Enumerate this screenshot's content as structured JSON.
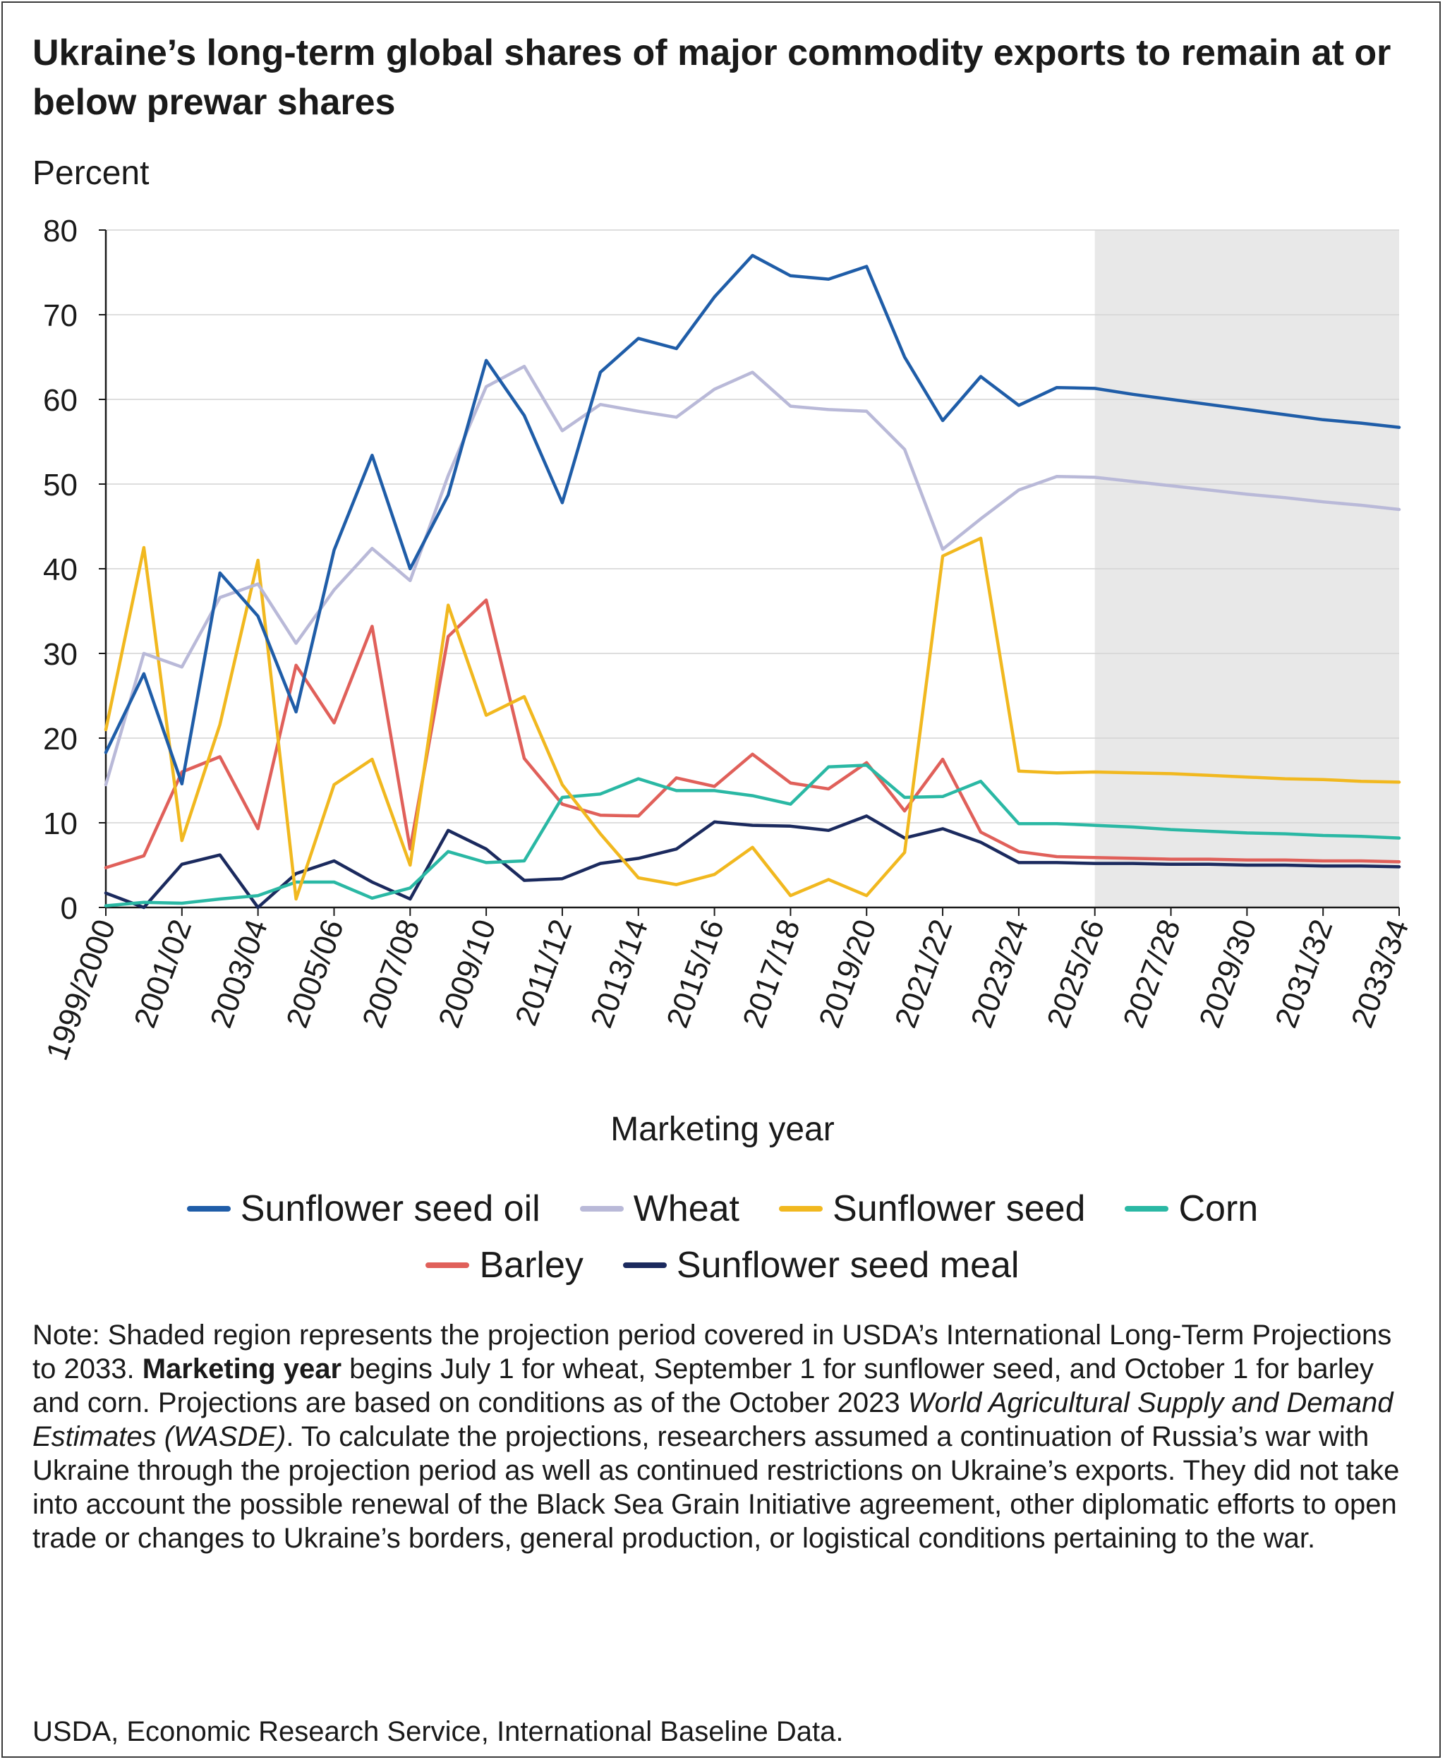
{
  "title": "Ukraine’s long-term global shares of major commodity exports to remain at or below prewar shares",
  "note": {
    "p1": "Note: Shaded region represents the projection period covered in USDA’s International Long-Term Projections to 2033. ",
    "bold": "Marketing year",
    "p2": " begins July 1 for wheat, September 1 for sunflower seed, and October 1 for barley and corn. Projections are based on conditions as of the October 2023 ",
    "italic": "World Agricultural Supply and Demand Estimates (WASDE)",
    "p3": ". To calculate the projections, researchers assumed a continuation of Russia’s war with Ukraine through the projection period as well as continued restrictions on Ukraine’s exports. They did not take into account the possible renewal of the Black Sea Grain Initiative agreement, other diplomatic efforts to open trade or changes to Ukraine’s borders, general production, or logistical conditions pertaining to the war."
  },
  "source": "USDA, Economic Research Service, International Baseline Data.",
  "chart_data": {
    "type": "line",
    "ylabel": "Percent",
    "xlabel": "Marketing year",
    "ylim": [
      0,
      80
    ],
    "yticks": [
      0,
      10,
      20,
      30,
      40,
      50,
      60,
      70,
      80
    ],
    "grid": "horizontal",
    "legend_position": "bottom",
    "projection_shaded_from": "2025/26",
    "projection_shaded_to": "2033/34",
    "x": [
      "1999/2000",
      "2000/01",
      "2001/02",
      "2002/03",
      "2003/04",
      "2004/05",
      "2005/06",
      "2006/07",
      "2007/08",
      "2008/09",
      "2009/10",
      "2010/11",
      "2011/12",
      "2012/13",
      "2013/14",
      "2014/15",
      "2015/16",
      "2016/17",
      "2017/18",
      "2018/19",
      "2019/20",
      "2020/21",
      "2021/22",
      "2022/23",
      "2023/24",
      "2024/25",
      "2025/26",
      "2026/27",
      "2027/28",
      "2028/29",
      "2029/30",
      "2030/31",
      "2031/32",
      "2032/33",
      "2033/34"
    ],
    "xtick_labels": [
      "1999/2000",
      "2001/02",
      "2003/04",
      "2005/06",
      "2007/08",
      "2009/10",
      "2011/12",
      "2013/14",
      "2015/16",
      "2017/18",
      "2019/20",
      "2021/22",
      "2023/24",
      "2025/26",
      "2027/28",
      "2029/30",
      "2031/32",
      "2033/34"
    ],
    "series": [
      {
        "name": "Sunflower seed oil",
        "color": "#1f5da8",
        "values": [
          18.3,
          27.6,
          14.6,
          39.5,
          34.4,
          23.1,
          42.2,
          53.4,
          40.0,
          48.7,
          64.6,
          58.1,
          47.8,
          63.2,
          67.2,
          66.0,
          72.1,
          77.0,
          74.6,
          74.2,
          75.7,
          65.0,
          57.5,
          62.7,
          59.3,
          61.4,
          61.3,
          60.6,
          60.0,
          59.4,
          58.8,
          58.2,
          57.6,
          57.2,
          56.7
        ]
      },
      {
        "name": "Wheat",
        "color": "#b9b9d8",
        "values": [
          14.5,
          30.0,
          28.4,
          36.6,
          38.2,
          31.2,
          37.5,
          42.4,
          38.6,
          51.0,
          61.5,
          63.9,
          56.3,
          59.4,
          58.6,
          57.9,
          61.2,
          63.2,
          59.2,
          58.8,
          58.6,
          54.1,
          42.3,
          45.9,
          49.3,
          50.9,
          50.8,
          50.3,
          49.8,
          49.3,
          48.8,
          48.4,
          47.9,
          47.5,
          47.0
        ]
      },
      {
        "name": "Sunflower seed",
        "color": "#f1b81f",
        "values": [
          21.0,
          42.5,
          7.9,
          21.6,
          41.0,
          1.0,
          14.5,
          17.5,
          5.0,
          35.7,
          22.7,
          24.9,
          14.5,
          8.7,
          3.5,
          2.7,
          3.9,
          7.1,
          1.4,
          3.3,
          1.4,
          6.5,
          41.5,
          43.6,
          16.1,
          15.9,
          16.0,
          15.9,
          15.8,
          15.6,
          15.4,
          15.2,
          15.1,
          14.9,
          14.8
        ]
      },
      {
        "name": "Corn",
        "color": "#2ab8a4",
        "values": [
          0.2,
          0.6,
          0.5,
          1.0,
          1.4,
          3.0,
          3.0,
          1.1,
          2.3,
          6.6,
          5.3,
          5.5,
          13.0,
          13.4,
          15.2,
          13.8,
          13.8,
          13.2,
          12.2,
          16.6,
          16.8,
          13.0,
          13.1,
          14.9,
          9.9,
          9.9,
          9.7,
          9.5,
          9.2,
          9.0,
          8.8,
          8.7,
          8.5,
          8.4,
          8.2
        ]
      },
      {
        "name": "Barley",
        "color": "#e0605a",
        "values": [
          4.7,
          6.1,
          16.0,
          17.8,
          9.3,
          28.6,
          21.8,
          33.2,
          6.9,
          32.0,
          36.3,
          17.6,
          12.2,
          10.9,
          10.8,
          15.3,
          14.3,
          18.1,
          14.7,
          14.0,
          17.1,
          11.4,
          17.5,
          8.9,
          6.6,
          6.0,
          5.9,
          5.8,
          5.7,
          5.7,
          5.6,
          5.6,
          5.5,
          5.5,
          5.4
        ]
      },
      {
        "name": "Sunflower seed meal",
        "color": "#1b2a5e",
        "values": [
          1.7,
          0.0,
          5.1,
          6.2,
          0.0,
          4.0,
          5.5,
          3.0,
          1.0,
          9.1,
          6.9,
          3.2,
          3.4,
          5.2,
          5.8,
          6.9,
          10.1,
          9.7,
          9.6,
          9.1,
          10.8,
          8.2,
          9.3,
          7.7,
          5.3,
          5.3,
          5.2,
          5.2,
          5.1,
          5.1,
          5.0,
          5.0,
          4.9,
          4.9,
          4.8
        ]
      }
    ]
  }
}
